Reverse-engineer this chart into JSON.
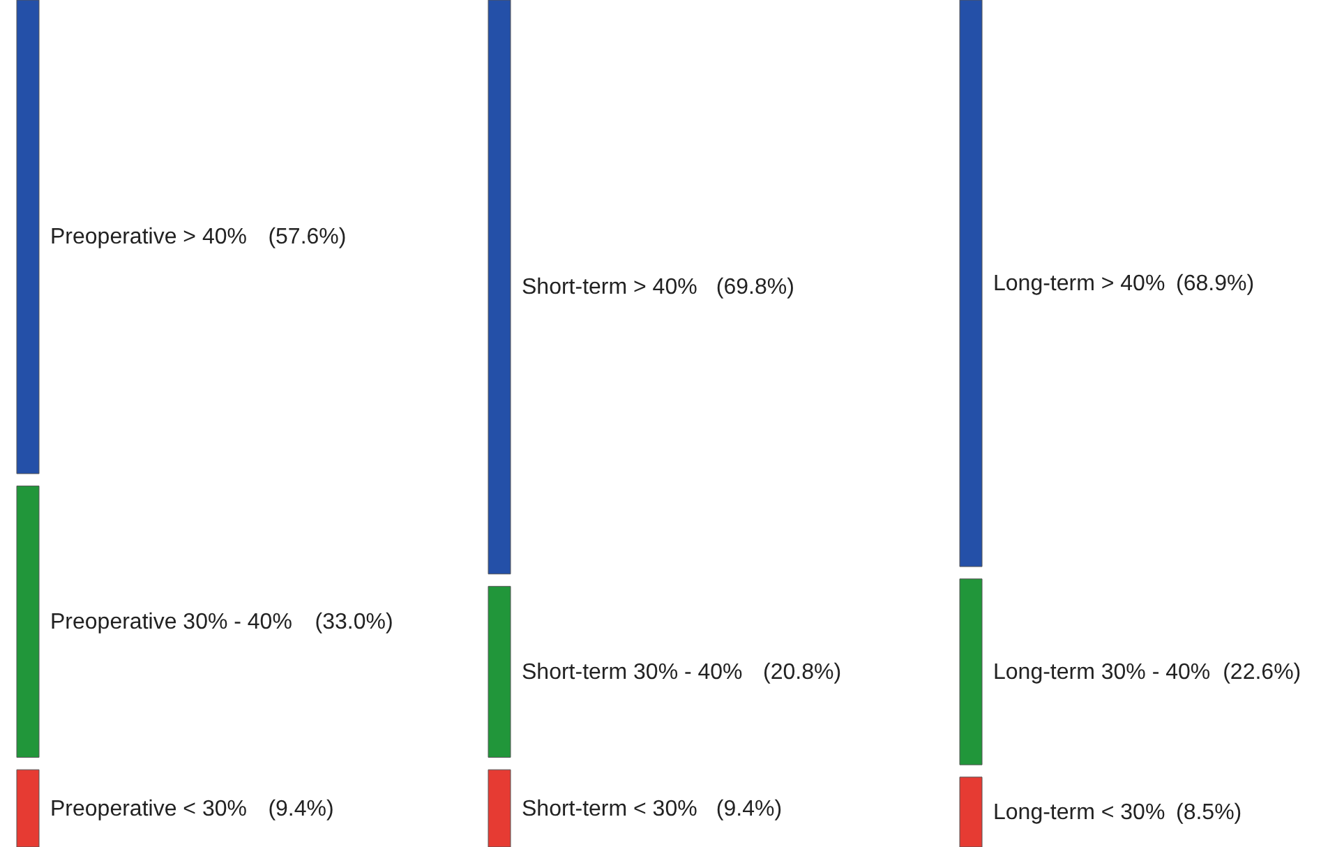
{
  "chart_data": {
    "type": "other",
    "categories": [
      "Preoperative > 40%",
      "Preoperative 30% - 40%",
      "Preoperative < 30%",
      "Short-term > 40%",
      "Short-term 30% - 40%",
      "Short-term < 30%",
      "Long-term > 40%",
      "Long-term 30% - 40%",
      "Long-term < 30%"
    ],
    "values": [
      57.6,
      33.0,
      9.4,
      69.8,
      20.8,
      9.4,
      68.9,
      22.6,
      8.5
    ],
    "value_labels": [
      "(57.6%)",
      "(33.0%)",
      "(9.4%)",
      "(69.8%)",
      "(20.8%)",
      "(9.4%)",
      "(68.9%)",
      "(22.6%)",
      "(8.5%)"
    ],
    "colors": [
      "#2450a8",
      "#21963a",
      "#e63b33",
      "#2450a8",
      "#21963a",
      "#e63b33",
      "#2450a8",
      "#21963a",
      "#e63b33"
    ]
  }
}
